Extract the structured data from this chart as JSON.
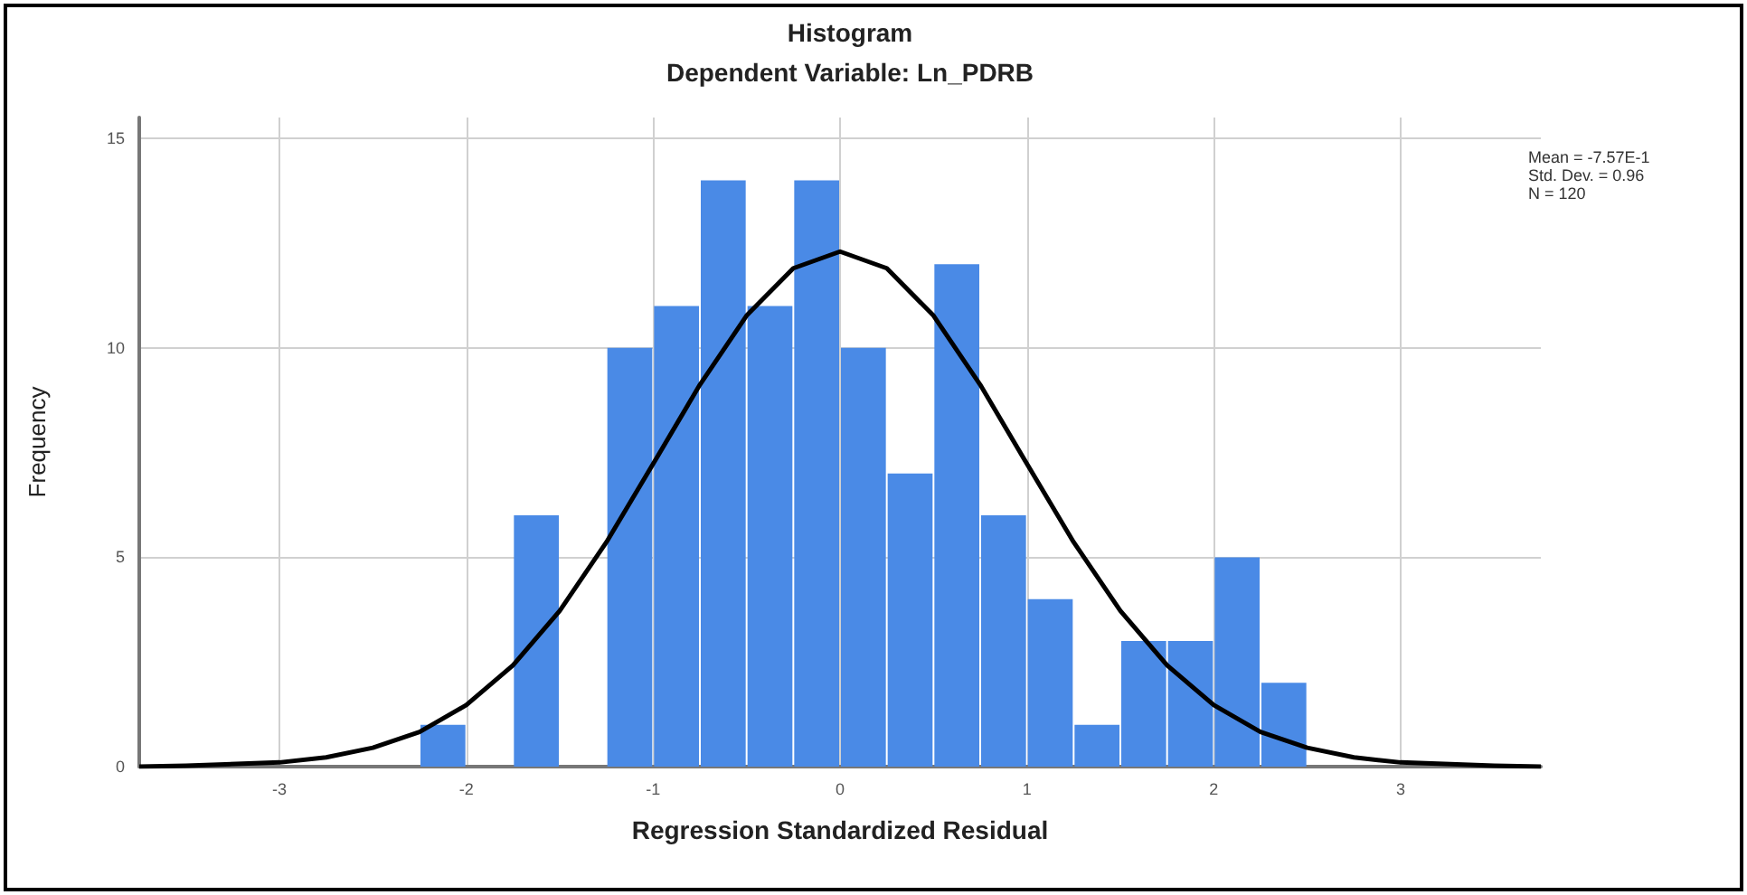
{
  "chart_data": {
    "type": "histogram",
    "title": "Histogram",
    "subtitle": "Dependent Variable: Ln_PDRB",
    "xlabel": "Regression Standardized Residual",
    "ylabel": "Frequency",
    "bins": [
      -2.25,
      -2,
      -1.75,
      -1.5,
      -1.25,
      -1,
      -0.75,
      -0.5,
      -0.25,
      0,
      0.25,
      0.5,
      0.75,
      1,
      1.25,
      1.5,
      1.75,
      2,
      2.25,
      2.5
    ],
    "values": [
      1,
      0,
      6,
      0,
      10,
      11,
      14,
      11,
      14,
      10,
      7,
      12,
      6,
      4,
      1,
      3,
      3,
      5,
      2
    ],
    "color": "#4a8ae6",
    "series": [
      {
        "type": "line",
        "color": "#000000",
        "x": [
          -3.75,
          -3.5,
          -3,
          -2.75,
          -2.5,
          -2.25,
          -2,
          -1.75,
          -1.5,
          -1.25,
          -1,
          -0.75,
          -0.5,
          -0.25,
          0,
          0.25,
          0.5,
          0.75,
          1,
          1.25,
          1.5,
          1.75,
          2,
          2.25,
          2.5,
          2.75,
          3,
          3.5,
          3.75
        ],
        "values": [
          0,
          0.02,
          0.1,
          0.22,
          0.45,
          0.83,
          1.47,
          2.42,
          3.72,
          5.36,
          7.23,
          9.12,
          10.77,
          11.9,
          12.3,
          11.9,
          10.77,
          9.12,
          7.23,
          5.36,
          3.72,
          2.42,
          1.47,
          0.83,
          0.45,
          0.22,
          0.1,
          0.02,
          0
        ]
      }
    ],
    "xlim": [
      -3.75,
      3.75
    ],
    "xticks": [
      -3,
      -2,
      -1,
      0,
      1,
      2,
      3
    ],
    "ylim": [
      0,
      15.5
    ],
    "yticks": [
      0,
      5,
      10,
      15
    ],
    "grid": true,
    "marker": "none",
    "line_style": "solid",
    "annotations": [
      "Mean = -7.57E-1",
      "Std. Dev. = 0.96",
      "N = 120"
    ]
  }
}
